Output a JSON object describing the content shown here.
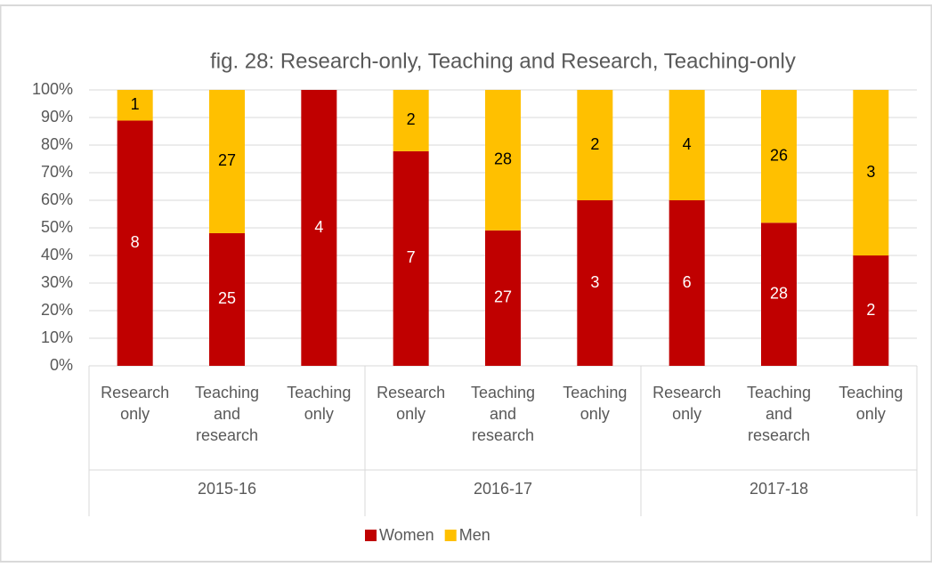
{
  "chart_data": {
    "type": "bar",
    "stacked": "percent",
    "title": "fig. 28: Research-only, Teaching and Research, Teaching-only",
    "categories": [
      "Research only",
      "Teaching and research",
      "Teaching only",
      "Research only",
      "Teaching and research",
      "Teaching only",
      "Research only",
      "Teaching and research",
      "Teaching only"
    ],
    "category_groups": [
      "2015-16",
      "2016-17",
      "2017-18"
    ],
    "series": [
      {
        "name": "Women",
        "color": "#c00000",
        "label_color": "#ffffff",
        "values": [
          8,
          25,
          4,
          7,
          27,
          3,
          6,
          28,
          2
        ]
      },
      {
        "name": "Men",
        "color": "#ffc000",
        "label_color": "#000000",
        "values": [
          1,
          27,
          0,
          2,
          28,
          2,
          4,
          26,
          3
        ]
      }
    ],
    "ylim": [
      0,
      100
    ],
    "yticks": [
      {
        "value": 0,
        "label": "0%"
      },
      {
        "value": 10,
        "label": "10%"
      },
      {
        "value": 20,
        "label": "20%"
      },
      {
        "value": 30,
        "label": "30%"
      },
      {
        "value": 40,
        "label": "40%"
      },
      {
        "value": 50,
        "label": "50%"
      },
      {
        "value": 60,
        "label": "60%"
      },
      {
        "value": 70,
        "label": "70%"
      },
      {
        "value": 80,
        "label": "80%"
      },
      {
        "value": 90,
        "label": "90%"
      },
      {
        "value": 100,
        "label": "100%"
      }
    ],
    "grid": true,
    "legend": "bottom"
  }
}
